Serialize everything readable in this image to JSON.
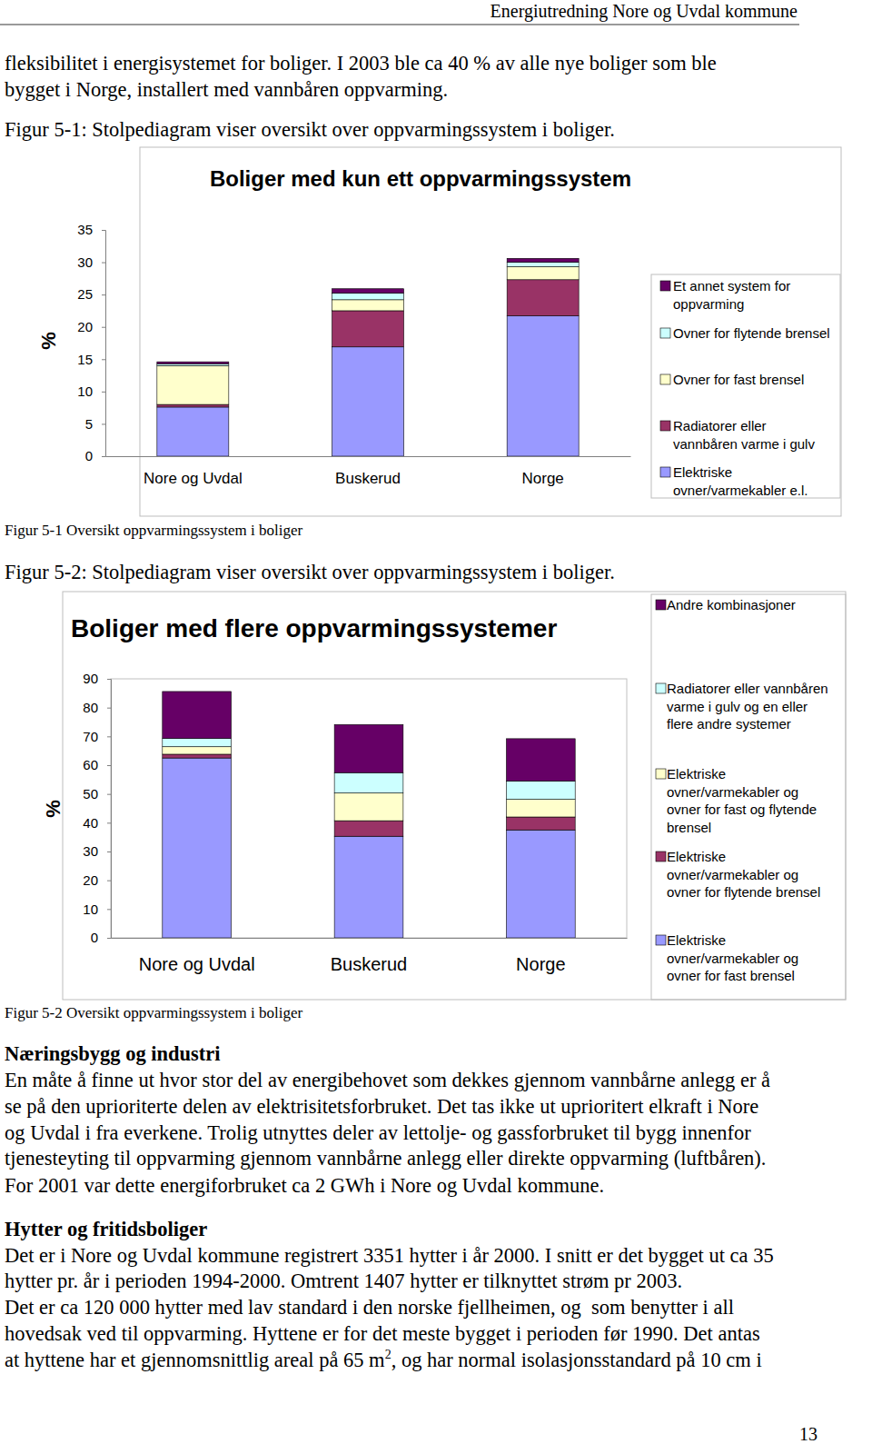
{
  "header": {
    "title": "Energiutredning Nore og Uvdal kommune"
  },
  "intro_lines": [
    "fleksibilitet i energisystemet for boliger. I 2003 ble ca 40 % av alle nye boliger som ble",
    "bygget i Norge, installert med vannbåren oppvarming."
  ],
  "figures": [
    {
      "caption_above": "Figur 5-1: Stolpediagram viser oversikt over oppvarmingssystem i boliger.",
      "caption_below": "Figur 5-1 Oversikt oppvarmingssystem i boliger"
    },
    {
      "caption_above": "Figur 5-2: Stolpediagram viser oversikt over oppvarmingssystem i boliger.",
      "caption_below": "Figur 5-2 Oversikt oppvarmingssystem i boliger"
    }
  ],
  "chart_data": [
    {
      "type": "bar",
      "stacked": true,
      "legend": "right",
      "title": "Boliger med kun ett oppvarmingssystem",
      "ylabel": "%",
      "categories": [
        "Nore og Uvdal",
        "Buskerud",
        "Norge"
      ],
      "ylim": [
        0,
        35
      ],
      "yticks": [
        0,
        5,
        10,
        15,
        20,
        25,
        30,
        35
      ],
      "series": [
        {
          "name": "Elektriske ovner/varmekabler e.l.",
          "color": "#9999ff",
          "values": [
            7.6,
            16.9,
            21.7
          ]
        },
        {
          "name": "Radiatorer eller vannbåren varme i gulv",
          "color": "#993366",
          "values": [
            0.4,
            5.6,
            5.6
          ]
        },
        {
          "name": "Ovner for fast brensel",
          "color": "#ffffcc",
          "values": [
            6.0,
            1.7,
            2.0
          ]
        },
        {
          "name": "Ovner for flytende brensel",
          "color": "#ccffff",
          "values": [
            0.3,
            1.0,
            0.7
          ]
        },
        {
          "name": "Et annet system for oppvarming",
          "color": "#660066",
          "values": [
            0.3,
            0.7,
            0.6
          ]
        }
      ]
    },
    {
      "type": "bar",
      "stacked": true,
      "legend": "right",
      "title": "Boliger med flere oppvarmingssystemer",
      "ylabel": "%",
      "categories": [
        "Nore og Uvdal",
        "Buskerud",
        "Norge"
      ],
      "ylim": [
        0,
        90
      ],
      "yticks": [
        0,
        10,
        20,
        30,
        40,
        50,
        60,
        70,
        80,
        90
      ],
      "series": [
        {
          "name": "Elektriske ovner/varmekabler og ovner for fast brensel",
          "color": "#9999ff",
          "values": [
            62.5,
            35.3,
            37.5
          ]
        },
        {
          "name": "Elektriske ovner/varmekabler og ovner for flytende brensel",
          "color": "#993366",
          "values": [
            1.3,
            5.4,
            4.5
          ]
        },
        {
          "name": "Elektriske ovner/varmekabler og ovner for fast og flytende brensel",
          "color": "#ffffcc",
          "values": [
            2.6,
            9.6,
            6.1
          ]
        },
        {
          "name": "Radiatorer eller vannbåren varme i gulv og en eller flere andre systemer",
          "color": "#ccffff",
          "values": [
            2.9,
            7.1,
            6.4
          ]
        },
        {
          "name": "Andre kombinasjoner",
          "color": "#660066",
          "values": [
            16.3,
            16.7,
            14.7
          ]
        }
      ]
    }
  ],
  "sections": [
    {
      "heading": "Næringsbygg og industri",
      "lines": [
        "En måte å finne ut hvor stor del av energibehovet som dekkes gjennom vannbårne anlegg er å",
        "se på den uprioriterte delen av elektrisitetsforbruket. Det tas ikke ut uprioritert elkraft i Nore",
        "og Uvdal i fra everkene. Trolig utnyttes deler av lettolje- og gassforbruket til bygg innenfor",
        "tjenesteyting til oppvarming gjennom vannbårne anlegg eller direkte oppvarming (luftbåren).",
        "For 2001 var dette energiforbruket ca 2 GWh i Nore og Uvdal kommune."
      ]
    },
    {
      "heading": "Hytter og fritidsboliger",
      "lines": [
        "Det er i Nore og Uvdal kommune registrert 3351 hytter i år 2000. I snitt er det bygget ut ca 35",
        "hytter pr. år i perioden 1994-2000. Omtrent 1407 hytter er tilknyttet strøm pr 2003.",
        "Det er ca 120 000 hytter med lav standard i den norske fjellheimen, og  som benytter i all",
        "hovedsak ved til oppvarming. Hyttene er for det meste bygget i perioden før 1990. Det antas",
        {
          "before": "at hyttene har et gjennomsnittlig areal på 65 m",
          "superscript": "2",
          "after": ", og har normal isolasjonsstandard på 10 cm i"
        }
      ]
    }
  ],
  "page_number": "13"
}
